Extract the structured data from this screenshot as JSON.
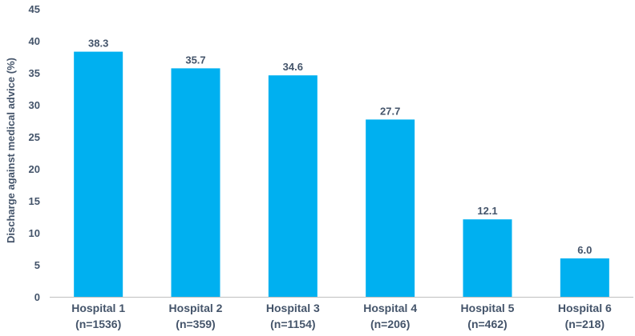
{
  "chart_data": {
    "type": "bar",
    "categories": [
      "Hospital 1",
      "Hospital 2",
      "Hospital 3",
      "Hospital 4",
      "Hospital 5",
      "Hospital 6"
    ],
    "category_sublabels": [
      "(n=1536)",
      "(n=359)",
      "(n=1154)",
      "(n=206)",
      "(n=462)",
      "(n=218)"
    ],
    "values": [
      38.3,
      35.7,
      34.6,
      27.7,
      12.1,
      6.0
    ],
    "value_labels": [
      "38.3",
      "35.7",
      "34.6",
      "27.7",
      "12.1",
      "6.0"
    ],
    "title": "",
    "xlabel": "",
    "ylabel": "Discharge against medical advice (%)",
    "ylim": [
      0,
      45
    ],
    "yticks": [
      0,
      5,
      10,
      15,
      20,
      25,
      30,
      35,
      40,
      45
    ],
    "grid": false,
    "legend": "none",
    "bar_color": "#00b0f0",
    "text_color": "#44546a",
    "axis_color": "#bfbfbf"
  }
}
